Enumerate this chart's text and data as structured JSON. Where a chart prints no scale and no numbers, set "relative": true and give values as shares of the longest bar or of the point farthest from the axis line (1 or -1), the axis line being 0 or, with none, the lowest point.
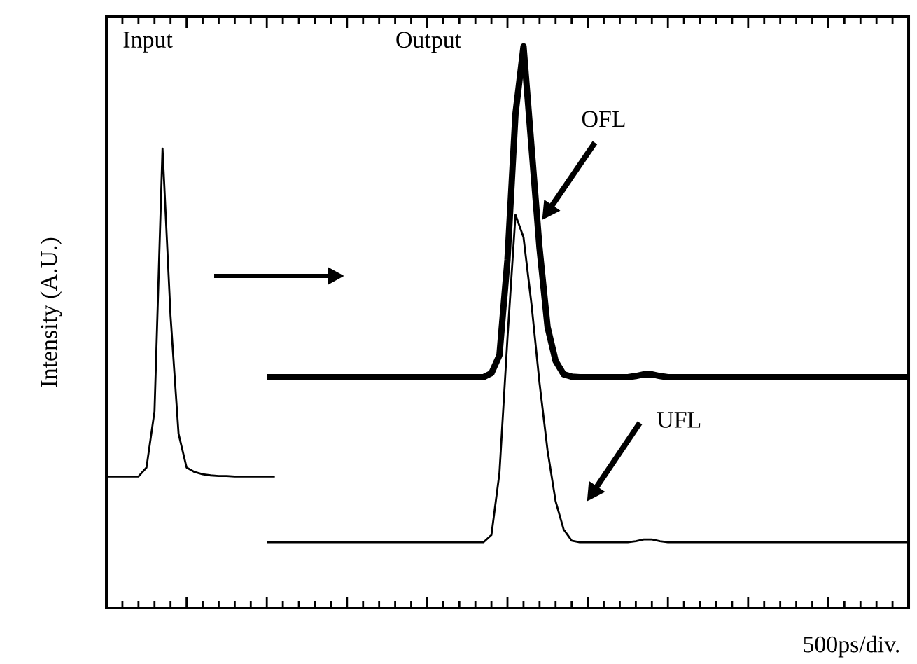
{
  "chart_data": {
    "type": "line",
    "relative": true,
    "xlabel": "500ps/div.",
    "ylabel": "Intensity (A.U.)",
    "categories": [
      null,
      null,
      null,
      null,
      null,
      null,
      null,
      null,
      null,
      null,
      null,
      null,
      null,
      null,
      null,
      null,
      null,
      null,
      null,
      null,
      null,
      null,
      null,
      null,
      null,
      null,
      null,
      null,
      null,
      null,
      null,
      null,
      null,
      null,
      null,
      null,
      null,
      null,
      null,
      null,
      null,
      null,
      null,
      null,
      null,
      null,
      null,
      null,
      null,
      null,
      null,
      null,
      null,
      null,
      null,
      null,
      null,
      null,
      null,
      null,
      null,
      null,
      null,
      null,
      null,
      null,
      null,
      null,
      null,
      null,
      null,
      null,
      null,
      null,
      null,
      null,
      null,
      null,
      null,
      null,
      null,
      null,
      null,
      null,
      null,
      null,
      null,
      null,
      null,
      null,
      null,
      null,
      null,
      null,
      null,
      null,
      null,
      null,
      null,
      null,
      null
    ],
    "series": [
      {
        "color": "#000000",
        "values": [
          0.234,
          0.234,
          0.234,
          0.234,
          0.234,
          0.25,
          0.35,
          0.818,
          0.52,
          0.31,
          0.25,
          0.242,
          0.238,
          0.236,
          0.235,
          0.235,
          0.234,
          0.234,
          0.234,
          0.234,
          0.234,
          0.234,
          null,
          null,
          null,
          null,
          null,
          null,
          null,
          null,
          null,
          null,
          null,
          null,
          null,
          null,
          null,
          null,
          null,
          null,
          null,
          null,
          null,
          null,
          null,
          null,
          null,
          null,
          null,
          null,
          null,
          null,
          null,
          null,
          null,
          null,
          null,
          null,
          null,
          null,
          null,
          null,
          null,
          null,
          null,
          null,
          null,
          null,
          null,
          null,
          null,
          null,
          null,
          null,
          null,
          null,
          null,
          null,
          null,
          null,
          null,
          null,
          null,
          null,
          null,
          null,
          null,
          null,
          null,
          null,
          null,
          null,
          null,
          null,
          null,
          null,
          null,
          null,
          null,
          null,
          null
        ]
      },
      {
        "color": "#000000",
        "values": [
          null,
          null,
          null,
          null,
          null,
          null,
          null,
          null,
          null,
          null,
          null,
          null,
          null,
          null,
          null,
          null,
          null,
          null,
          null,
          null,
          0.411,
          0.411,
          0.411,
          0.411,
          0.411,
          0.411,
          0.411,
          0.411,
          0.411,
          0.411,
          0.411,
          0.411,
          0.411,
          0.411,
          0.411,
          0.411,
          0.411,
          0.411,
          0.411,
          0.411,
          0.411,
          0.411,
          0.411,
          0.411,
          0.411,
          0.411,
          0.411,
          0.411,
          0.418,
          0.45,
          0.62,
          0.88,
          1.0,
          0.82,
          0.64,
          0.5,
          0.44,
          0.416,
          0.412,
          0.411,
          0.411,
          0.411,
          0.411,
          0.411,
          0.411,
          0.411,
          0.413,
          0.416,
          0.416,
          0.413,
          0.411,
          0.411,
          0.411,
          0.411,
          0.411,
          0.411,
          0.411,
          0.411,
          0.411,
          0.411,
          0.411,
          0.411,
          0.411,
          0.411,
          0.411,
          0.411,
          0.411,
          0.411,
          0.411,
          0.411,
          0.411,
          0.411,
          0.411,
          0.411,
          0.411,
          0.411,
          0.411,
          0.411,
          0.411,
          0.411,
          0.411
        ]
      },
      {
        "color": "#000000",
        "values": [
          null,
          null,
          null,
          null,
          null,
          null,
          null,
          null,
          null,
          null,
          null,
          null,
          null,
          null,
          null,
          null,
          null,
          null,
          null,
          null,
          0.117,
          0.117,
          0.117,
          0.117,
          0.117,
          0.117,
          0.117,
          0.117,
          0.117,
          0.117,
          0.117,
          0.117,
          0.117,
          0.117,
          0.117,
          0.117,
          0.117,
          0.117,
          0.117,
          0.117,
          0.117,
          0.117,
          0.117,
          0.117,
          0.117,
          0.117,
          0.117,
          0.117,
          0.13,
          0.24,
          0.48,
          0.7,
          0.66,
          0.54,
          0.4,
          0.28,
          0.19,
          0.14,
          0.12,
          0.117,
          0.117,
          0.117,
          0.117,
          0.117,
          0.117,
          0.117,
          0.119,
          0.122,
          0.122,
          0.119,
          0.117,
          0.117,
          0.117,
          0.117,
          0.117,
          0.117,
          0.117,
          0.117,
          0.117,
          0.117,
          0.117,
          0.117,
          0.117,
          0.117,
          0.117,
          0.117,
          0.117,
          0.117,
          0.117,
          0.117,
          0.117,
          0.117,
          0.117,
          0.117,
          0.117,
          0.117,
          0.117,
          0.117,
          0.117,
          0.117,
          0.117
        ]
      }
    ],
    "annotations": [
      "Input",
      "Output",
      "OFL",
      "UFL"
    ]
  }
}
